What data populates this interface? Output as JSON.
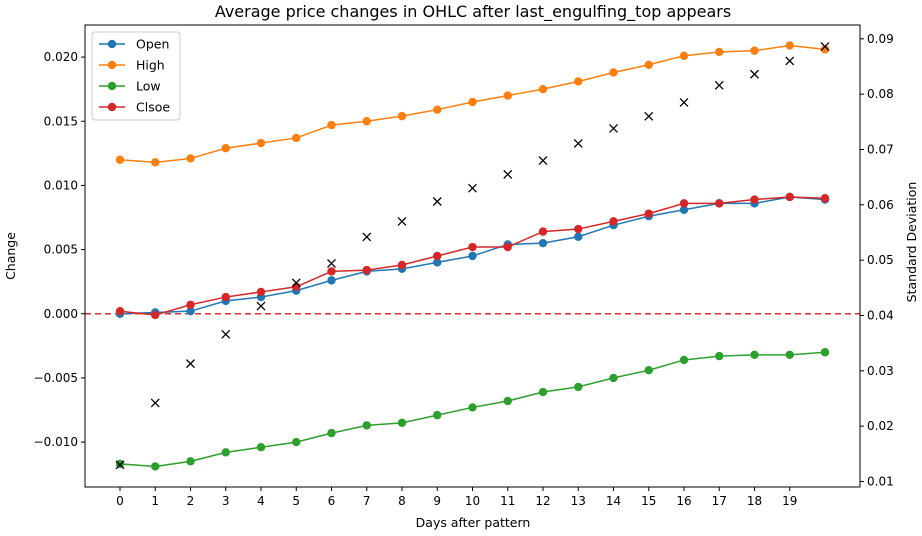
{
  "chart_data": {
    "type": "line",
    "title": "Average price changes in OHLC after last_engulfing_top appears",
    "xlabel": "Days after pattern",
    "ylabel": "Change",
    "y2label": "Standard Deviation",
    "x": [
      0,
      1,
      2,
      3,
      4,
      5,
      6,
      7,
      8,
      9,
      10,
      11,
      12,
      13,
      14,
      15,
      16,
      17,
      18,
      19,
      20
    ],
    "xticks": [
      "0",
      "1",
      "2",
      "3",
      "4",
      "5",
      "6",
      "7",
      "8",
      "9",
      "10",
      "11",
      "12",
      "13",
      "14",
      "15",
      "16",
      "17",
      "18",
      "19"
    ],
    "ylim": [
      -0.0135,
      0.0225
    ],
    "yticks": [
      "−0.010",
      "−0.005",
      "0.000",
      "0.005",
      "0.010",
      "0.015",
      "0.020"
    ],
    "ytick_values": [
      -0.01,
      -0.005,
      0,
      0.005,
      0.01,
      0.015,
      0.02
    ],
    "y2lim": [
      0.009,
      0.0925
    ],
    "y2ticks": [
      "0.01",
      "0.02",
      "0.03",
      "0.04",
      "0.05",
      "0.06",
      "0.07",
      "0.08",
      "0.09"
    ],
    "y2tick_values": [
      0.01,
      0.02,
      0.03,
      0.04,
      0.05,
      0.06,
      0.07,
      0.08,
      0.09
    ],
    "series": [
      {
        "name": "Open",
        "color": "#1f77b4",
        "values": [
          0.0,
          0.0001,
          0.0002,
          0.001,
          0.0013,
          0.0018,
          0.0026,
          0.0033,
          0.0035,
          0.004,
          0.0045,
          0.0054,
          0.0055,
          0.006,
          0.0069,
          0.0076,
          0.0081,
          0.0086,
          0.0086,
          0.0091,
          0.0089
        ]
      },
      {
        "name": "High",
        "color": "#ff7f0e",
        "values": [
          0.012,
          0.0118,
          0.0121,
          0.0129,
          0.0133,
          0.0137,
          0.0147,
          0.015,
          0.0154,
          0.0159,
          0.0165,
          0.017,
          0.0175,
          0.0181,
          0.0188,
          0.0194,
          0.0201,
          0.0204,
          0.0205,
          0.0209,
          0.0206
        ]
      },
      {
        "name": "Low",
        "color": "#2ca02c",
        "values": [
          -0.0117,
          -0.0119,
          -0.0115,
          -0.0108,
          -0.0104,
          -0.01,
          -0.0093,
          -0.0087,
          -0.0085,
          -0.0079,
          -0.0073,
          -0.0068,
          -0.0061,
          -0.0057,
          -0.005,
          -0.0044,
          -0.0036,
          -0.0033,
          -0.0032,
          -0.0032,
          -0.003
        ]
      },
      {
        "name": "Clsoe",
        "color": "#d62728",
        "values": [
          0.0002,
          -0.0001,
          0.0007,
          0.0013,
          0.0017,
          0.0021,
          0.0033,
          0.0034,
          0.0038,
          0.0045,
          0.0052,
          0.0052,
          0.0064,
          0.0066,
          0.0072,
          0.0078,
          0.0086,
          0.0086,
          0.0089,
          0.0091,
          0.009
        ]
      }
    ],
    "std_series": {
      "marker": "x",
      "color": "#000000",
      "axis": "right",
      "values": [
        0.013,
        0.0242,
        0.0313,
        0.0366,
        0.0417,
        0.0459,
        0.0494,
        0.0542,
        0.057,
        0.0606,
        0.063,
        0.0655,
        0.068,
        0.0711,
        0.0738,
        0.076,
        0.0785,
        0.0816,
        0.0836,
        0.086,
        0.0886
      ]
    },
    "hline": {
      "y": 0,
      "color": "#e03030",
      "style": "dashed"
    },
    "legend_position": "top-left",
    "grid": false
  }
}
